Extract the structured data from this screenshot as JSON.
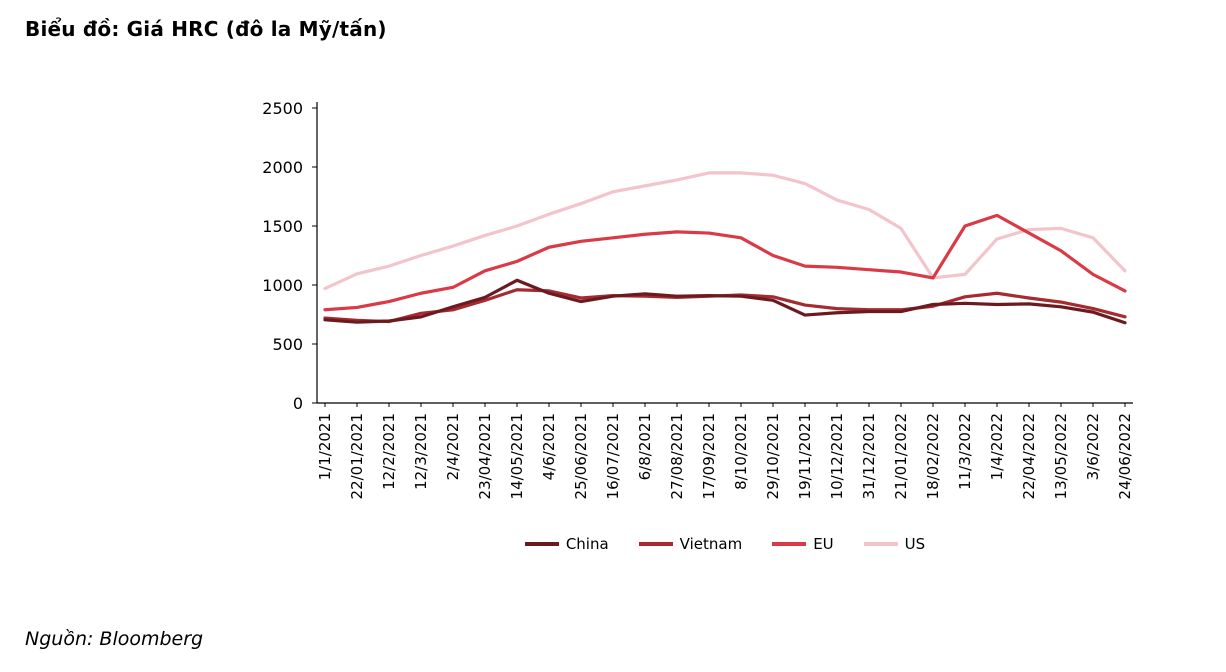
{
  "title": "Biểu đồ: Giá HRC (đô la Mỹ/tấn)",
  "source": "Nguồn: Bloomberg",
  "chart_data": {
    "type": "line",
    "title": "Biểu đồ: Giá HRC (đô la Mỹ/tấn)",
    "xlabel": "",
    "ylabel": "",
    "ylim": [
      0,
      2500
    ],
    "yticks": [
      0,
      500,
      1000,
      1500,
      2000,
      2500
    ],
    "grid": false,
    "legend_position": "bottom",
    "x": [
      "1/1/2021",
      "22/01/2021",
      "12/2/2021",
      "12/3/2021",
      "2/4/2021",
      "23/04/2021",
      "14/05/2021",
      "4/6/2021",
      "25/06/2021",
      "16/07/2021",
      "6/8/2021",
      "27/08/2021",
      "17/09/2021",
      "8/10/2021",
      "29/10/2021",
      "19/11/2021",
      "10/12/2021",
      "31/12/2021",
      "21/01/2022",
      "18/02/2022",
      "11/3/2022",
      "1/4/2022",
      "22/04/2022",
      "13/05/2022",
      "3/6/2022",
      "24/06/2022"
    ],
    "series": [
      {
        "name": "China",
        "color": "#6B1B20",
        "values": [
          705,
          685,
          695,
          730,
          815,
          895,
          1040,
          930,
          860,
          905,
          925,
          905,
          910,
          905,
          870,
          745,
          765,
          775,
          775,
          835,
          845,
          835,
          840,
          815,
          770,
          680
        ]
      },
      {
        "name": "Vietnam",
        "color": "#A62B31",
        "values": [
          720,
          700,
          690,
          760,
          790,
          870,
          960,
          950,
          890,
          910,
          905,
          895,
          905,
          915,
          900,
          830,
          800,
          790,
          790,
          820,
          900,
          930,
          890,
          855,
          800,
          730
        ]
      },
      {
        "name": "EU",
        "color": "#D93A46",
        "values": [
          790,
          810,
          860,
          930,
          980,
          1120,
          1200,
          1320,
          1370,
          1400,
          1430,
          1450,
          1440,
          1400,
          1250,
          1160,
          1150,
          1130,
          1110,
          1060,
          1500,
          1590,
          1440,
          1290,
          1090,
          950
        ]
      },
      {
        "name": "US",
        "color": "#F3C4CB",
        "values": [
          970,
          1095,
          1160,
          1250,
          1330,
          1420,
          1500,
          1600,
          1690,
          1790,
          1840,
          1890,
          1950,
          1950,
          1930,
          1860,
          1720,
          1640,
          1480,
          1060,
          1090,
          1390,
          1470,
          1480,
          1400,
          1120
        ]
      }
    ]
  }
}
